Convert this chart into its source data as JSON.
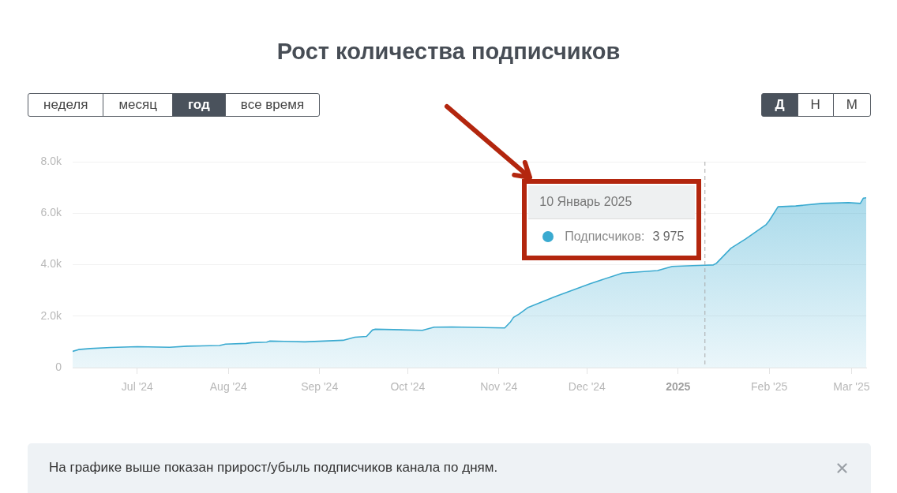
{
  "chart_data": {
    "type": "area",
    "title": "Рост количества подписчиков",
    "x": [
      "2024-06-09",
      "2024-06-11",
      "2024-06-15",
      "2024-06-22",
      "2024-07-01",
      "2024-07-12",
      "2024-07-18",
      "2024-07-29",
      "2024-07-31",
      "2024-08-07",
      "2024-08-09",
      "2024-08-14",
      "2024-08-15",
      "2024-08-20",
      "2024-08-27",
      "2024-09-09",
      "2024-09-13",
      "2024-09-17",
      "2024-09-19",
      "2024-09-20",
      "2024-10-06",
      "2024-10-10",
      "2024-10-16",
      "2024-11-03",
      "2024-11-05",
      "2024-11-06",
      "2024-11-08",
      "2024-11-11",
      "2024-11-20",
      "2024-12-02",
      "2024-12-13",
      "2024-12-25",
      "2024-12-30",
      "2025-01-06",
      "2025-01-10",
      "2025-01-13",
      "2025-01-14",
      "2025-01-19",
      "2025-01-24",
      "2025-01-31",
      "2025-02-01",
      "2025-02-04",
      "2025-02-10",
      "2025-02-19",
      "2025-02-28",
      "2025-03-04",
      "2025-03-05",
      "2025-03-06"
    ],
    "series": [
      {
        "name": "Подписчиков:",
        "color": "#3aaad0",
        "values": [
          630,
          700,
          740,
          780,
          810,
          790,
          830,
          860,
          910,
          940,
          970,
          990,
          1030,
          1020,
          1000,
          1060,
          1180,
          1210,
          1460,
          1490,
          1450,
          1570,
          1580,
          1540,
          1780,
          1950,
          2090,
          2340,
          2750,
          3260,
          3670,
          3770,
          3930,
          3960,
          3975,
          3990,
          4050,
          4640,
          5000,
          5560,
          5710,
          6250,
          6280,
          6380,
          6410,
          6380,
          6580,
          6600
        ],
        "value_labels": [
          null,
          null,
          null,
          null,
          null,
          null,
          null,
          null,
          null,
          null,
          null,
          null,
          null,
          null,
          null,
          null,
          null,
          null,
          null,
          null,
          null,
          null,
          null,
          null,
          null,
          null,
          null,
          null,
          null,
          null,
          null,
          null,
          null,
          null,
          "3 975",
          null,
          null,
          null,
          null,
          null,
          null,
          null,
          null,
          null,
          null,
          null,
          null,
          null
        ]
      }
    ],
    "xlim": [
      "2024-06-09",
      "2025-03-06"
    ],
    "xticks": [
      {
        "value": "2024-07-01",
        "label": "Jul '24"
      },
      {
        "value": "2024-08-01",
        "label": "Aug '24"
      },
      {
        "value": "2024-09-01",
        "label": "Sep '24"
      },
      {
        "value": "2024-10-01",
        "label": "Oct '24"
      },
      {
        "value": "2024-11-01",
        "label": "Nov '24"
      },
      {
        "value": "2024-12-01",
        "label": "Dec '24"
      },
      {
        "value": "2025-01-01",
        "label": "2025"
      },
      {
        "value": "2025-02-01",
        "label": "Feb '25"
      },
      {
        "value": "2025-03-01",
        "label": "Mar '25"
      }
    ],
    "ylim": [
      0,
      8000
    ],
    "yticks": [
      0,
      {
        "value": 2000,
        "label": "2.0k"
      },
      {
        "value": 4000,
        "label": "4.0k"
      },
      {
        "value": 6000,
        "label": "6.0k"
      },
      {
        "value": 8000,
        "label": "8.0k"
      }
    ],
    "grid": "y",
    "ref_lines": [
      {
        "axis": "x",
        "value": "2025-01-10",
        "color": "#aaaaaa",
        "line_style": "dashed"
      }
    ],
    "annotations": [
      "неделя",
      "месяц",
      "год",
      "все время",
      "Д",
      "Н",
      "М",
      "10 Январь 2025",
      "На графике выше показан прирост/убыль подписчиков канала по дням."
    ]
  }
}
